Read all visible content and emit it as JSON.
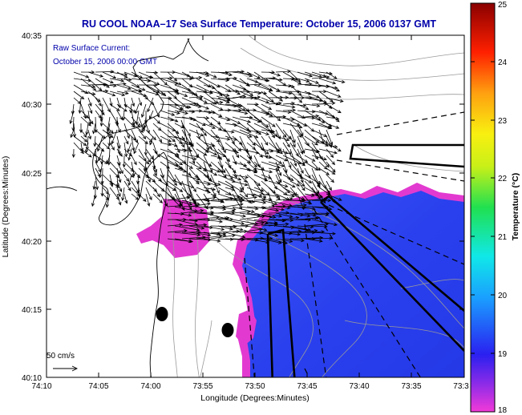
{
  "title": "RU COOL  NOAA–17  Sea Surface Temperature:  October 15, 2006 0137 GMT",
  "current_label": {
    "line1": "Raw Surface Current:",
    "line2": "October 15, 2006 00:00 GMT"
  },
  "scale_label": "50 cm/s",
  "axes": {
    "xlabel": "Longitude (Degrees:Minutes)",
    "ylabel": "Latitude (Degrees:Minutes)",
    "xticks": [
      "74:10",
      "74:05",
      "74:00",
      "73:55",
      "73:50",
      "73:45",
      "73:40",
      "73:35",
      "73:3"
    ],
    "yticks": [
      "40:35",
      "40:30",
      "40:25",
      "40:20",
      "40:15",
      "40:10"
    ]
  },
  "colorbar": {
    "label": "Temperature (°C)",
    "ticks": [
      "25",
      "24",
      "23",
      "22",
      "21",
      "20",
      "19",
      "18"
    ],
    "min": 18,
    "max": 25
  },
  "colors": {
    "title": "#0000aa",
    "sst_warm_blue": "#2a3df0",
    "sst_edge_magenta": "#e23ad0"
  }
}
